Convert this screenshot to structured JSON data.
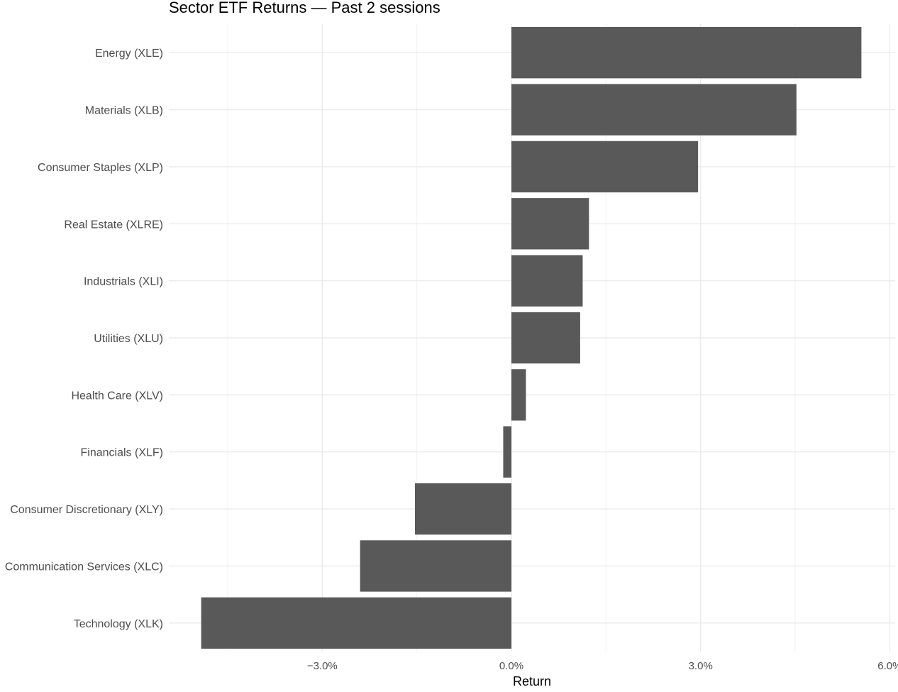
{
  "chart_data": {
    "type": "bar",
    "orientation": "horizontal",
    "title": "Sector ETF Returns — Past 2 sessions",
    "xlabel": "Return",
    "ylabel": "",
    "categories": [
      "Energy (XLE)",
      "Materials (XLB)",
      "Consumer Staples (XLP)",
      "Real Estate (XLRE)",
      "Industrials (XLI)",
      "Utilities (XLU)",
      "Health Care (XLV)",
      "Financials (XLF)",
      "Consumer Discretionary (XLY)",
      "Communication Services (XLC)",
      "Technology (XLK)"
    ],
    "values": [
      5.55,
      4.52,
      2.96,
      1.23,
      1.13,
      1.09,
      0.23,
      -0.13,
      -1.53,
      -2.4,
      -4.92
    ],
    "xlim": [
      -5.5,
      6.0
    ],
    "x_ticks": [
      -3.0,
      0.0,
      3.0,
      6.0
    ],
    "x_tick_labels": [
      "−3.0%",
      "0.0%",
      "3.0%",
      "6.0%"
    ],
    "grid": true,
    "colors": {
      "bar": "#595959",
      "grid_major": "#ebebeb",
      "grid_minor": "#f2f2f2",
      "tick_text": "#4d4d4d"
    }
  }
}
